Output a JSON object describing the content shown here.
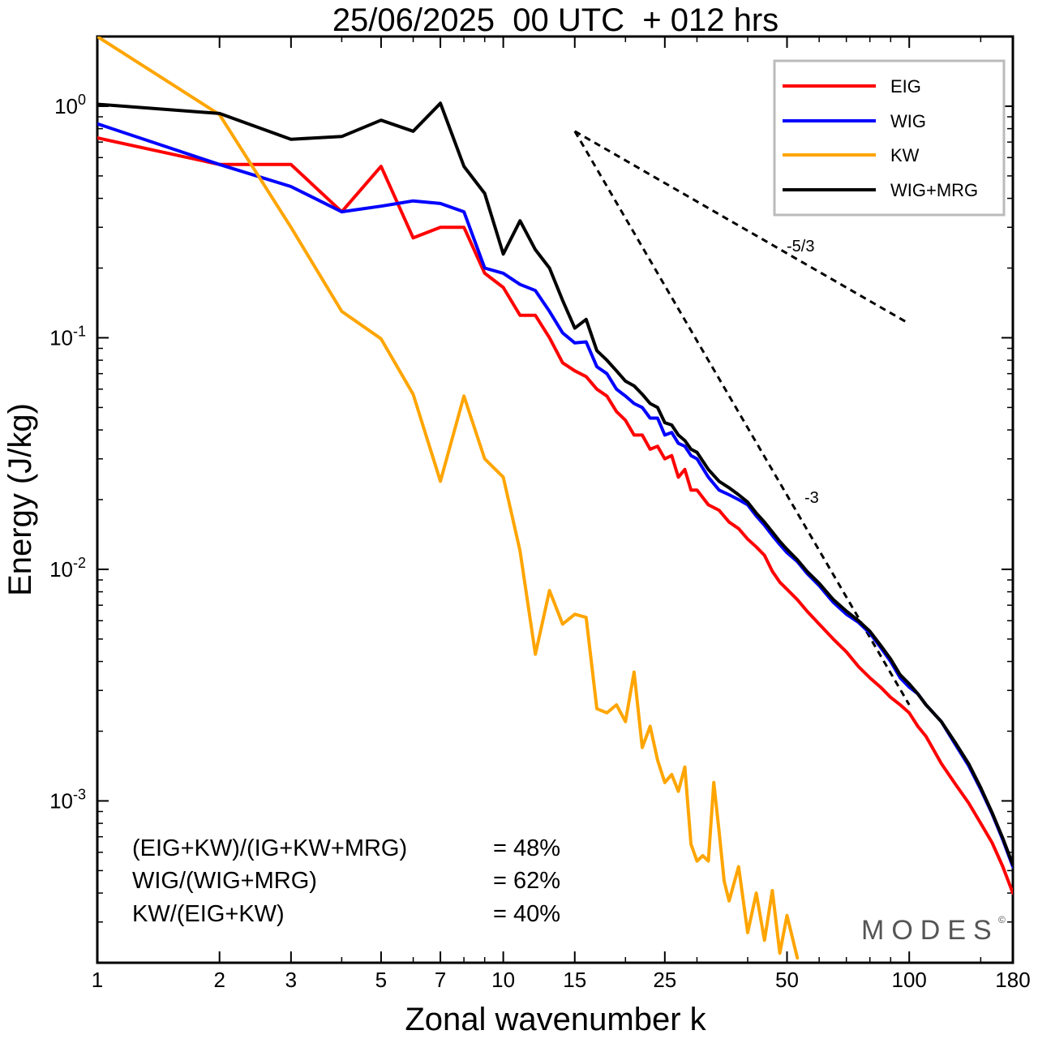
{
  "chart_data": {
    "type": "line",
    "title": "25/06/2025  00 UTC  + 012 hrs",
    "xlabel": "Zonal wavenumber k",
    "ylabel": "Energy (J/kg)",
    "x_scale": "log",
    "y_scale": "log",
    "xlim": [
      1,
      180
    ],
    "ylim": [
      0.0002,
      2.0
    ],
    "x_ticks": [
      1,
      2,
      3,
      5,
      7,
      10,
      15,
      25,
      50,
      100,
      180
    ],
    "x_tick_labels": [
      "1",
      "2",
      "3",
      "5",
      "7",
      "10",
      "15",
      "25",
      "50",
      "100",
      "180"
    ],
    "y_ticks": [
      1.0,
      0.1,
      0.01,
      0.001
    ],
    "y_tick_labels": [
      {
        "base": "10",
        "exp": "0"
      },
      {
        "base": "10",
        "exp": "-1"
      },
      {
        "base": "10",
        "exp": "-2"
      },
      {
        "base": "10",
        "exp": "-3"
      }
    ],
    "grid": false,
    "legend_position": "top-right",
    "series": [
      {
        "name": "EIG",
        "color": "#ff0000",
        "x": [
          1,
          2,
          3,
          4,
          5,
          6,
          7,
          8,
          9,
          10,
          11,
          12,
          13,
          14,
          15,
          16,
          17,
          18,
          19,
          20,
          21,
          22,
          23,
          24,
          25,
          26,
          27,
          28,
          29,
          30,
          32,
          34,
          36,
          38,
          40,
          42,
          44,
          46,
          48,
          50,
          53,
          56,
          60,
          65,
          70,
          75,
          80,
          85,
          90,
          95,
          100,
          105,
          110,
          120,
          130,
          140,
          150,
          160,
          170,
          180
        ],
        "y": [
          0.73,
          0.56,
          0.56,
          0.35,
          0.55,
          0.27,
          0.3,
          0.3,
          0.19,
          0.165,
          0.125,
          0.125,
          0.1,
          0.078,
          0.072,
          0.068,
          0.06,
          0.056,
          0.048,
          0.044,
          0.038,
          0.038,
          0.033,
          0.034,
          0.03,
          0.031,
          0.025,
          0.027,
          0.022,
          0.022,
          0.019,
          0.018,
          0.016,
          0.015,
          0.0135,
          0.0125,
          0.0115,
          0.0098,
          0.0088,
          0.0082,
          0.0074,
          0.0066,
          0.0058,
          0.005,
          0.0044,
          0.0038,
          0.0034,
          0.0031,
          0.0028,
          0.0026,
          0.0024,
          0.0021,
          0.0019,
          0.00145,
          0.00118,
          0.00098,
          0.0008,
          0.00066,
          0.00052,
          0.0004
        ]
      },
      {
        "name": "WIG",
        "color": "#0000ff",
        "x": [
          1,
          2,
          3,
          4,
          5,
          6,
          7,
          8,
          9,
          10,
          11,
          12,
          13,
          14,
          15,
          16,
          17,
          18,
          19,
          20,
          21,
          22,
          23,
          24,
          25,
          26,
          27,
          28,
          29,
          30,
          32,
          34,
          36,
          38,
          40,
          42,
          44,
          46,
          48,
          50,
          53,
          56,
          60,
          65,
          70,
          75,
          80,
          85,
          90,
          95,
          100,
          105,
          110,
          120,
          130,
          140,
          150,
          160,
          170,
          180
        ],
        "y": [
          0.84,
          0.56,
          0.45,
          0.35,
          0.37,
          0.39,
          0.38,
          0.35,
          0.2,
          0.19,
          0.17,
          0.16,
          0.13,
          0.105,
          0.095,
          0.096,
          0.075,
          0.07,
          0.06,
          0.056,
          0.052,
          0.05,
          0.045,
          0.045,
          0.038,
          0.039,
          0.035,
          0.034,
          0.031,
          0.03,
          0.025,
          0.022,
          0.021,
          0.02,
          0.019,
          0.017,
          0.0155,
          0.014,
          0.0128,
          0.0118,
          0.0108,
          0.0096,
          0.0085,
          0.0072,
          0.0064,
          0.0059,
          0.0053,
          0.0046,
          0.004,
          0.0034,
          0.0031,
          0.0029,
          0.0026,
          0.0022,
          0.00175,
          0.00142,
          0.00112,
          0.00088,
          0.00068,
          0.00052
        ]
      },
      {
        "name": "KW",
        "color": "#ffa500",
        "x": [
          1,
          2,
          3,
          4,
          5,
          6,
          7,
          8,
          9,
          10,
          11,
          12,
          13,
          14,
          15,
          16,
          17,
          18,
          19,
          20,
          21,
          22,
          23,
          24,
          25,
          26,
          27,
          28,
          29,
          30,
          31,
          32,
          33,
          34,
          35,
          36,
          38,
          40,
          42,
          44,
          46,
          48,
          50,
          53
        ],
        "y": [
          2.0,
          0.92,
          0.3,
          0.13,
          0.099,
          0.057,
          0.024,
          0.056,
          0.03,
          0.025,
          0.012,
          0.0043,
          0.0081,
          0.0058,
          0.0064,
          0.0062,
          0.0025,
          0.0024,
          0.0026,
          0.0022,
          0.0036,
          0.0017,
          0.0021,
          0.0015,
          0.0012,
          0.0013,
          0.0011,
          0.0014,
          0.00065,
          0.00055,
          0.00058,
          0.00055,
          0.0012,
          0.00074,
          0.00045,
          0.00037,
          0.00052,
          0.00027,
          0.0004,
          0.00025,
          0.00041,
          0.00022,
          0.00032,
          0.00021
        ]
      },
      {
        "name": "WIG+MRG",
        "color": "#000000",
        "x": [
          1,
          2,
          3,
          4,
          5,
          6,
          7,
          8,
          9,
          10,
          11,
          12,
          13,
          14,
          15,
          16,
          17,
          18,
          19,
          20,
          21,
          22,
          23,
          24,
          25,
          26,
          27,
          28,
          29,
          30,
          32,
          34,
          36,
          38,
          40,
          42,
          44,
          46,
          48,
          50,
          53,
          56,
          60,
          65,
          70,
          75,
          80,
          85,
          90,
          95,
          100,
          105,
          110,
          120,
          130,
          140,
          150,
          160,
          170,
          180
        ],
        "y": [
          1.02,
          0.93,
          0.72,
          0.74,
          0.87,
          0.78,
          1.03,
          0.55,
          0.42,
          0.23,
          0.32,
          0.24,
          0.2,
          0.145,
          0.11,
          0.12,
          0.088,
          0.08,
          0.072,
          0.065,
          0.062,
          0.057,
          0.052,
          0.05,
          0.043,
          0.042,
          0.038,
          0.036,
          0.033,
          0.032,
          0.027,
          0.024,
          0.0225,
          0.021,
          0.0195,
          0.0175,
          0.016,
          0.0145,
          0.0132,
          0.0122,
          0.011,
          0.0098,
          0.0087,
          0.0074,
          0.0066,
          0.006,
          0.0054,
          0.0047,
          0.0041,
          0.0035,
          0.0032,
          0.0029,
          0.0026,
          0.0022,
          0.00178,
          0.00145,
          0.00114,
          0.00089,
          0.00069,
          0.00053
        ]
      }
    ],
    "slope_lines": [
      {
        "label": "-5/3",
        "x": [
          15,
          100
        ],
        "y": [
          0.78,
          0.115
        ]
      },
      {
        "label": "-3",
        "x": [
          15,
          100
        ],
        "y": [
          0.78,
          0.0026
        ]
      }
    ],
    "annotations": {
      "stats": [
        {
          "label": "(EIG+KW)/(IG+KW+MRG)",
          "value": "= 48%"
        },
        {
          "label": "WIG/(WIG+MRG)",
          "value": "= 62%"
        },
        {
          "label": "KW/(EIG+KW)",
          "value": "= 40%"
        }
      ],
      "brand": "MODES",
      "brand_mark": "©"
    }
  }
}
